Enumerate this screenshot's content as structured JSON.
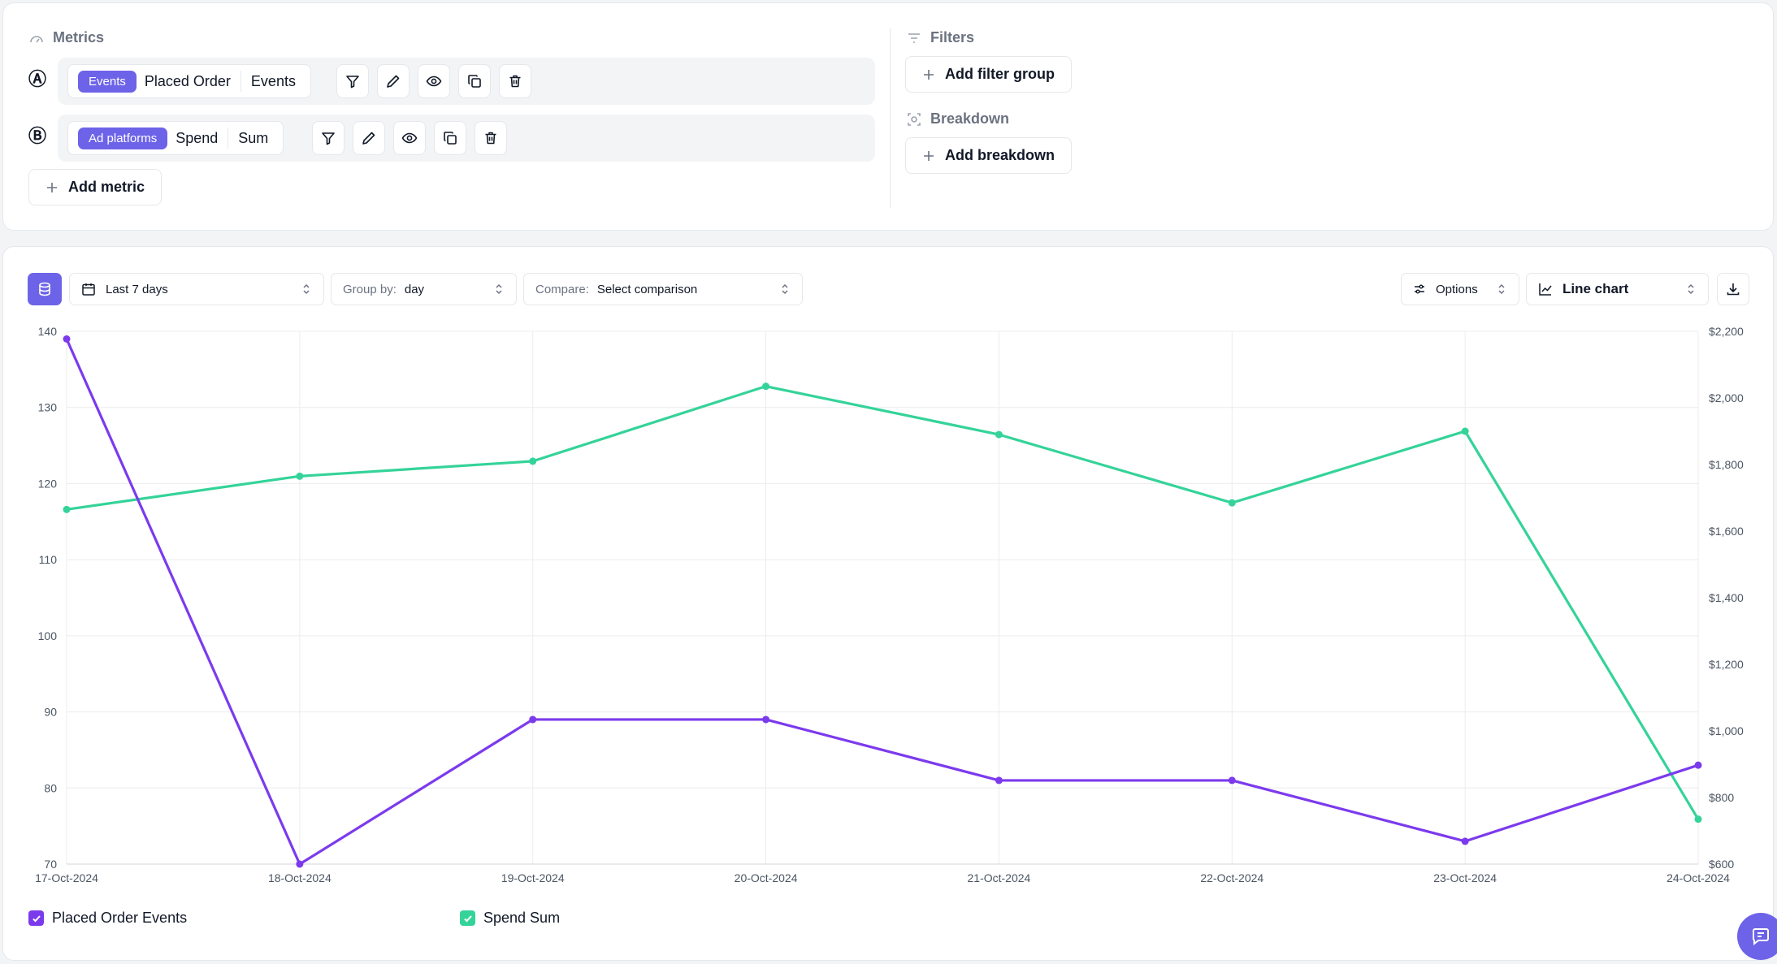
{
  "metrics_section": {
    "title": "Metrics",
    "metric_a": {
      "letter": "Ⓐ",
      "badge": "Events",
      "name": "Placed Order",
      "aggregation": "Events"
    },
    "metric_b": {
      "letter": "Ⓑ",
      "badge": "Ad platforms",
      "name": "Spend",
      "aggregation": "Sum"
    },
    "add_metric_label": "Add metric"
  },
  "filters_section": {
    "title": "Filters",
    "add_label": "Add filter group"
  },
  "breakdown_section": {
    "title": "Breakdown",
    "add_label": "Add breakdown"
  },
  "toolbar": {
    "date_range": "Last 7 days",
    "group_by_label": "Group by:",
    "group_by_value": "day",
    "compare_label": "Compare:",
    "compare_value": "Select comparison",
    "options_label": "Options",
    "chart_type_label": "Line chart"
  },
  "colors": {
    "accent": "#6d63e8",
    "series_a": "#7c3aed",
    "series_b": "#34d399"
  },
  "chart_data": {
    "type": "line",
    "x": [
      "17-Oct-2024",
      "18-Oct-2024",
      "19-Oct-2024",
      "20-Oct-2024",
      "21-Oct-2024",
      "22-Oct-2024",
      "23-Oct-2024",
      "24-Oct-2024"
    ],
    "series": [
      {
        "name": "Placed Order Events",
        "axis": "left",
        "color": "#7c3aed",
        "values": [
          139,
          70,
          89,
          89,
          81,
          81,
          73,
          83
        ]
      },
      {
        "name": "Spend Sum",
        "axis": "right",
        "color": "#34d399",
        "values": [
          1665,
          1765,
          1810,
          2035,
          1890,
          1685,
          1900,
          735
        ]
      }
    ],
    "y_left": {
      "min": 70,
      "max": 140,
      "ticks": [
        "70",
        "80",
        "90",
        "100",
        "110",
        "120",
        "130",
        "140"
      ]
    },
    "y_right": {
      "min": 600,
      "max": 2200,
      "ticks": [
        "$600",
        "$800",
        "$1,000",
        "$1,200",
        "$1,400",
        "$1,600",
        "$1,800",
        "$2,000",
        "$2,200"
      ]
    },
    "grid": true,
    "legend": "bottom-left"
  }
}
